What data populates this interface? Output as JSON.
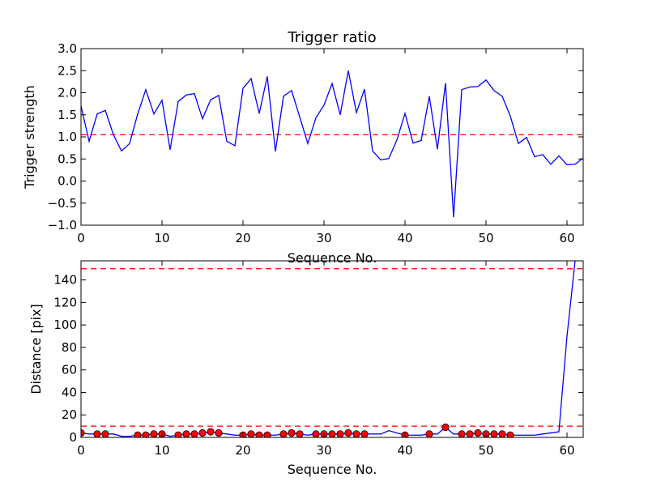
{
  "chart_data": [
    {
      "type": "line",
      "title": "Trigger ratio",
      "xlabel": "Sequence No.",
      "ylabel": "Trigger strength",
      "xlim": [
        0,
        62
      ],
      "ylim": [
        -1.0,
        3.0
      ],
      "xticks": [
        "0",
        "10",
        "20",
        "30",
        "40",
        "50",
        "60"
      ],
      "yticks": [
        "−1.0",
        "−0.5",
        "0.0",
        "0.5",
        "1.0",
        "1.5",
        "2.0",
        "2.5",
        "3.0"
      ],
      "grid": false,
      "colors": {
        "line": "#0000ff",
        "threshold": "#ff0000"
      },
      "threshold": 1.05,
      "x": [
        0,
        1,
        2,
        3,
        4,
        5,
        6,
        7,
        8,
        9,
        10,
        11,
        12,
        13,
        14,
        15,
        16,
        17,
        18,
        19,
        20,
        21,
        22,
        23,
        24,
        25,
        26,
        27,
        28,
        29,
        30,
        31,
        32,
        33,
        34,
        35,
        36,
        37,
        38,
        39,
        40,
        41,
        42,
        43,
        44,
        45,
        46,
        47,
        48,
        49,
        50,
        51,
        52,
        53,
        54,
        55,
        56,
        57,
        58,
        59,
        60,
        61,
        62
      ],
      "series": [
        {
          "values": [
            1.7,
            0.9,
            1.52,
            1.6,
            1.05,
            0.68,
            0.85,
            1.52,
            2.07,
            1.52,
            1.83,
            0.71,
            1.8,
            1.95,
            1.98,
            1.41,
            1.84,
            1.94,
            0.9,
            0.8,
            2.1,
            2.32,
            1.53,
            2.37,
            0.67,
            1.92,
            2.05,
            1.45,
            0.85,
            1.43,
            1.72,
            2.21,
            1.5,
            2.5,
            1.55,
            2.08,
            0.68,
            0.48,
            0.51,
            0.93,
            1.53,
            0.86,
            0.92,
            1.92,
            0.72,
            2.22,
            -0.82,
            2.07,
            2.13,
            2.14,
            2.29,
            2.05,
            1.92,
            1.47,
            0.85,
            0.99,
            0.55,
            0.6,
            0.38,
            0.57,
            0.37,
            0.38,
            0.52
          ]
        }
      ]
    },
    {
      "type": "line",
      "xlabel": "Sequence No.",
      "ylabel": "Distance [pix]",
      "xlim": [
        0,
        62
      ],
      "ylim": [
        0,
        157
      ],
      "xticks": [
        "0",
        "10",
        "20",
        "30",
        "40",
        "50",
        "60"
      ],
      "yticks": [
        "0",
        "20",
        "40",
        "60",
        "80",
        "100",
        "120",
        "140"
      ],
      "grid": false,
      "colors": {
        "line": "#0000ff",
        "marker": "#ff0000",
        "threshold": "#ff0000"
      },
      "thresholds": [
        10,
        150
      ],
      "x": [
        0,
        1,
        2,
        3,
        4,
        5,
        6,
        7,
        8,
        9,
        10,
        11,
        12,
        13,
        14,
        15,
        16,
        17,
        18,
        19,
        20,
        21,
        22,
        23,
        24,
        25,
        26,
        27,
        28,
        29,
        30,
        31,
        32,
        33,
        34,
        35,
        36,
        37,
        38,
        39,
        40,
        41,
        42,
        43,
        44,
        45,
        46,
        47,
        48,
        49,
        50,
        51,
        52,
        53,
        54,
        55,
        56,
        57,
        58,
        59,
        60,
        61
      ],
      "series": [
        {
          "values": [
            4,
            3,
            3,
            3,
            3,
            1,
            1,
            2,
            2,
            3,
            3,
            1,
            2,
            3,
            3,
            4,
            5,
            4,
            3,
            2,
            2,
            3,
            2,
            2,
            2,
            3,
            4,
            3,
            2,
            3,
            3,
            3,
            3,
            4,
            3,
            3,
            3,
            3,
            6,
            4,
            2,
            2,
            2,
            3,
            3,
            9,
            3,
            3,
            3,
            4,
            3,
            3,
            3,
            2,
            2,
            2,
            2,
            3,
            4,
            5,
            90,
            157
          ]
        },
        {
          "markers": true,
          "x": [
            0,
            2,
            3,
            7,
            8,
            9,
            10,
            12,
            13,
            14,
            15,
            16,
            17,
            20,
            21,
            22,
            23,
            25,
            26,
            27,
            29,
            30,
            31,
            32,
            33,
            34,
            35,
            40,
            43,
            45,
            47,
            48,
            49,
            50,
            51,
            52,
            53
          ],
          "values": [
            4,
            3,
            3,
            2,
            2,
            3,
            3,
            2,
            3,
            3,
            4,
            5,
            4,
            2,
            3,
            2,
            2,
            3,
            4,
            3,
            3,
            3,
            3,
            3,
            4,
            3,
            3,
            2,
            3,
            9,
            3,
            3,
            4,
            3,
            3,
            3,
            2
          ]
        }
      ]
    }
  ]
}
